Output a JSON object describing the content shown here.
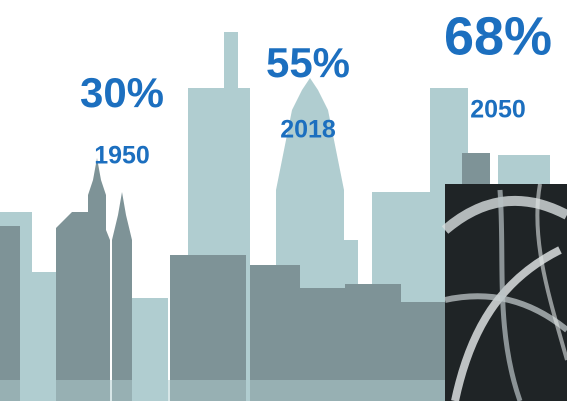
{
  "milestones": [
    {
      "percent": "30%",
      "year": "1950"
    },
    {
      "percent": "55%",
      "year": "2018"
    },
    {
      "percent": "68%",
      "year": "2050"
    }
  ]
}
